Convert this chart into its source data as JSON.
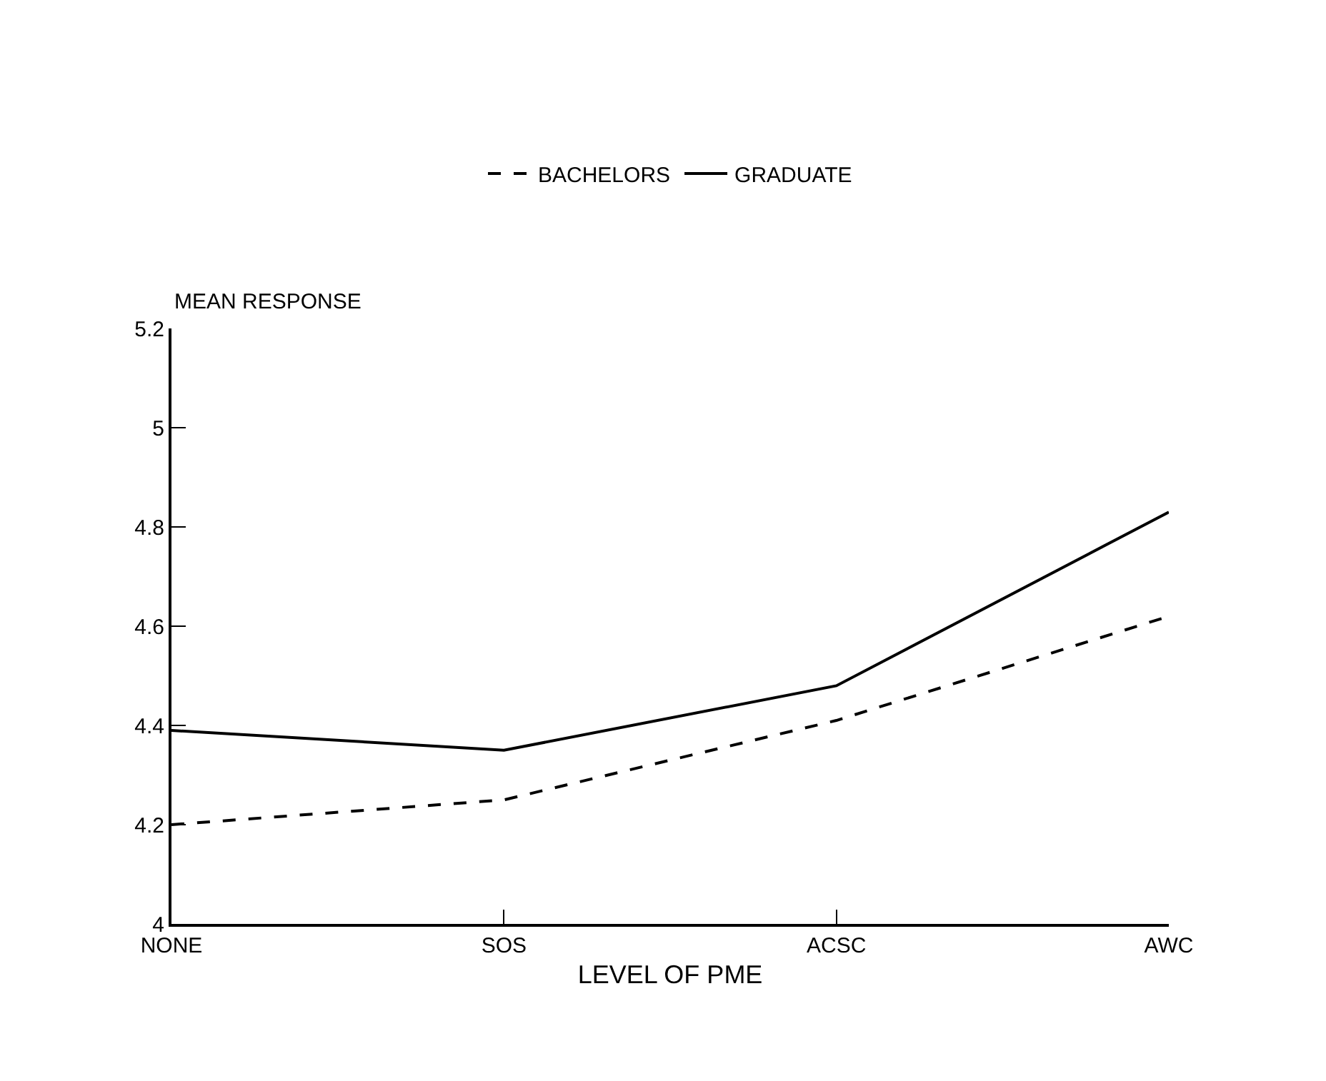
{
  "chart_data": {
    "type": "line",
    "xlabel": "LEVEL OF PME",
    "ylabel": "MEAN RESPONSE",
    "categories": [
      "NONE",
      "SOS",
      "ACSC",
      "AWC"
    ],
    "series": [
      {
        "name": "BACHELORS",
        "color": "#000000",
        "line_style": "dashed",
        "values": [
          4.2,
          4.25,
          4.41,
          4.62
        ]
      },
      {
        "name": "GRADUATE",
        "color": "#000000",
        "line_style": "solid",
        "values": [
          4.39,
          4.35,
          4.48,
          4.83
        ]
      }
    ],
    "ylim": [
      4,
      5.2
    ],
    "yticks": [
      4,
      4.2,
      4.4,
      4.6,
      4.8,
      5,
      5.2
    ],
    "legend": "top",
    "marker": "none"
  }
}
